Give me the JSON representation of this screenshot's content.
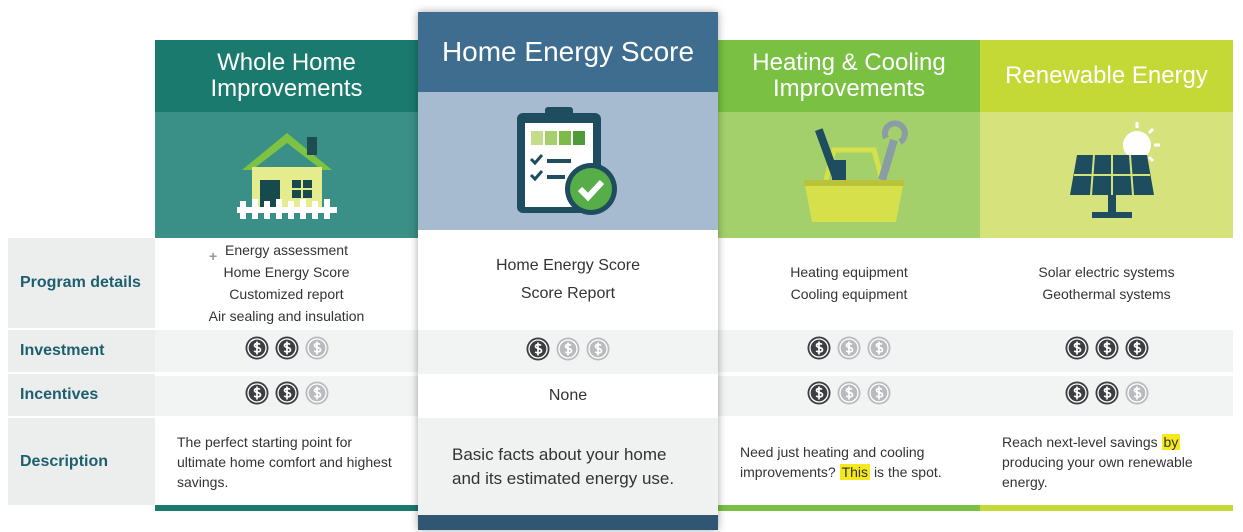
{
  "row_labels": [
    "Program details",
    "Investment",
    "Incentives",
    "Description"
  ],
  "columns": [
    {
      "title": "Whole Home Improvements",
      "details": [
        "Energy assessment",
        "Home Energy Score",
        "Customized report",
        "Air sealing and insulation"
      ],
      "investment": 2,
      "incentives": 2,
      "description": [
        "The perfect starting point for ultimate home comfort and highest savings."
      ]
    },
    {
      "title": "Home Energy Score",
      "details": [
        "Home Energy Score",
        "Score Report"
      ],
      "investment": 1,
      "incentives": "None",
      "description": [
        "Basic facts about your home and its estimated energy use."
      ]
    },
    {
      "title": "Heating & Cooling Improvements",
      "details": [
        "Heating equipment",
        "Cooling equipment"
      ],
      "investment": 1,
      "incentives": 1,
      "description": [
        "Need just heating and cooling improvements?",
        "This",
        "is the spot."
      ]
    },
    {
      "title": "Renewable Energy",
      "details": [
        "Solar electric systems",
        "Geothermal systems"
      ],
      "investment": 3,
      "incentives": 2,
      "description": [
        "Reach next-level savings",
        "by",
        "producing your own renewable energy."
      ]
    }
  ]
}
